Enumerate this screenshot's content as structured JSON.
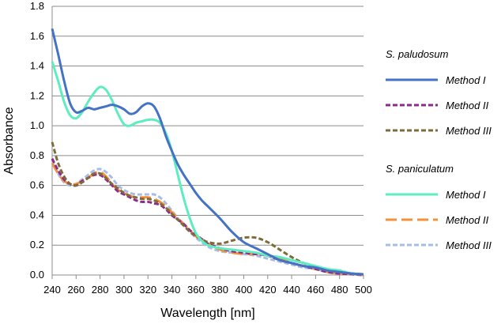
{
  "chart_data": {
    "type": "line",
    "title": "",
    "xlabel": "Wavelength [nm]",
    "ylabel": "Absorbance",
    "xlim": [
      240,
      500
    ],
    "ylim": [
      0,
      1.8
    ],
    "xticks": [
      "240",
      "260",
      "280",
      "300",
      "320",
      "340",
      "360",
      "380",
      "400",
      "420",
      "440",
      "460",
      "480",
      "500"
    ],
    "yticks": [
      "0.0",
      "0.2",
      "0.4",
      "0.6",
      "0.8",
      "1.0",
      "1.2",
      "1.4",
      "1.6",
      "1.8"
    ],
    "grid": "horizontal",
    "legend_position": "right",
    "groups": [
      {
        "name": "S. paludosum",
        "series": [
          {
            "name": "Method I",
            "color": "#4472C4",
            "dash": "solid",
            "x": [
              240,
              245,
              250,
              255,
              260,
              265,
              270,
              275,
              280,
              285,
              290,
              295,
              300,
              305,
              310,
              315,
              320,
              325,
              330,
              335,
              340,
              345,
              350,
              355,
              360,
              365,
              370,
              380,
              390,
              400,
              410,
              420,
              430,
              440,
              450,
              460,
              470,
              480,
              490,
              500
            ],
            "y": [
              1.65,
              1.48,
              1.3,
              1.15,
              1.09,
              1.1,
              1.12,
              1.11,
              1.12,
              1.13,
              1.14,
              1.13,
              1.11,
              1.08,
              1.09,
              1.13,
              1.15,
              1.13,
              1.05,
              0.93,
              0.83,
              0.74,
              0.67,
              0.61,
              0.55,
              0.5,
              0.46,
              0.38,
              0.29,
              0.22,
              0.18,
              0.14,
              0.1,
              0.08,
              0.06,
              0.05,
              0.03,
              0.02,
              0.01,
              0.005
            ]
          },
          {
            "name": "Method II",
            "color": "#8E2A8B",
            "dash": "dashed",
            "x": [
              240,
              245,
              250,
              255,
              260,
              265,
              270,
              275,
              280,
              285,
              290,
              295,
              300,
              305,
              310,
              315,
              320,
              325,
              330,
              335,
              340,
              345,
              350,
              355,
              360,
              365,
              370,
              380,
              390,
              400,
              410,
              420,
              430,
              440,
              450,
              460,
              470,
              480,
              490,
              500
            ],
            "y": [
              0.78,
              0.7,
              0.64,
              0.61,
              0.6,
              0.63,
              0.65,
              0.67,
              0.67,
              0.64,
              0.6,
              0.56,
              0.54,
              0.52,
              0.5,
              0.49,
              0.49,
              0.48,
              0.47,
              0.44,
              0.4,
              0.37,
              0.34,
              0.3,
              0.27,
              0.24,
              0.21,
              0.18,
              0.16,
              0.15,
              0.14,
              0.13,
              0.1,
              0.08,
              0.06,
              0.04,
              0.02,
              0.01,
              0.005,
              0.0
            ]
          },
          {
            "name": "Method III",
            "color": "#7F6A3A",
            "dash": "dashed",
            "x": [
              240,
              245,
              250,
              255,
              260,
              265,
              270,
              275,
              280,
              285,
              290,
              295,
              300,
              305,
              310,
              315,
              320,
              325,
              330,
              335,
              340,
              345,
              350,
              355,
              360,
              365,
              370,
              380,
              390,
              400,
              410,
              420,
              430,
              440,
              450,
              460,
              470,
              480,
              490,
              500
            ],
            "y": [
              0.89,
              0.75,
              0.66,
              0.61,
              0.6,
              0.62,
              0.65,
              0.68,
              0.68,
              0.65,
              0.61,
              0.58,
              0.55,
              0.53,
              0.52,
              0.51,
              0.51,
              0.5,
              0.48,
              0.45,
              0.41,
              0.37,
              0.33,
              0.29,
              0.26,
              0.24,
              0.22,
              0.21,
              0.23,
              0.25,
              0.25,
              0.22,
              0.17,
              0.12,
              0.08,
              0.05,
              0.03,
              0.02,
              0.01,
              0.005
            ]
          }
        ]
      },
      {
        "name": "S. paniculatum",
        "series": [
          {
            "name": "Method I",
            "color": "#5EEDC0",
            "dash": "solid",
            "x": [
              240,
              245,
              250,
              255,
              260,
              265,
              270,
              275,
              280,
              285,
              290,
              295,
              300,
              305,
              310,
              315,
              320,
              325,
              330,
              335,
              340,
              345,
              350,
              355,
              360,
              365,
              370,
              380,
              390,
              400,
              410,
              420,
              430,
              440,
              450,
              460,
              470,
              480,
              490,
              500
            ],
            "y": [
              1.43,
              1.3,
              1.16,
              1.07,
              1.05,
              1.09,
              1.16,
              1.22,
              1.26,
              1.24,
              1.17,
              1.08,
              1.01,
              1.0,
              1.02,
              1.03,
              1.04,
              1.04,
              1.02,
              0.95,
              0.83,
              0.67,
              0.51,
              0.38,
              0.28,
              0.23,
              0.2,
              0.18,
              0.17,
              0.16,
              0.15,
              0.13,
              0.12,
              0.1,
              0.08,
              0.06,
              0.04,
              0.03,
              0.01,
              0.005
            ]
          },
          {
            "name": "Method II",
            "color": "#F4923A",
            "dash": "longdash",
            "x": [
              240,
              245,
              250,
              255,
              260,
              265,
              270,
              275,
              280,
              285,
              290,
              295,
              300,
              305,
              310,
              315,
              320,
              325,
              330,
              335,
              340,
              345,
              350,
              355,
              360,
              365,
              370,
              380,
              390,
              400,
              410,
              420,
              430,
              440,
              450,
              460,
              470,
              480,
              490,
              500
            ],
            "y": [
              0.75,
              0.68,
              0.63,
              0.61,
              0.61,
              0.63,
              0.65,
              0.68,
              0.69,
              0.66,
              0.61,
              0.57,
              0.55,
              0.53,
              0.52,
              0.52,
              0.52,
              0.51,
              0.49,
              0.46,
              0.42,
              0.38,
              0.34,
              0.3,
              0.26,
              0.23,
              0.21,
              0.17,
              0.15,
              0.14,
              0.14,
              0.13,
              0.11,
              0.08,
              0.06,
              0.04,
              0.02,
              0.01,
              0.005,
              0.0
            ]
          },
          {
            "name": "Method III",
            "color": "#A7BDE8",
            "dash": "dashed",
            "x": [
              240,
              245,
              250,
              255,
              260,
              265,
              270,
              275,
              280,
              285,
              290,
              295,
              300,
              305,
              310,
              315,
              320,
              325,
              330,
              335,
              340,
              345,
              350,
              355,
              360,
              365,
              370,
              380,
              390,
              400,
              410,
              420,
              430,
              440,
              450,
              460,
              470,
              480,
              490,
              500
            ],
            "y": [
              0.77,
              0.68,
              0.62,
              0.6,
              0.61,
              0.64,
              0.67,
              0.7,
              0.71,
              0.69,
              0.65,
              0.6,
              0.57,
              0.55,
              0.54,
              0.54,
              0.54,
              0.54,
              0.52,
              0.48,
              0.43,
              0.38,
              0.33,
              0.29,
              0.25,
              0.22,
              0.19,
              0.16,
              0.15,
              0.14,
              0.13,
              0.11,
              0.09,
              0.07,
              0.05,
              0.04,
              0.02,
              0.01,
              0.005,
              0.0
            ]
          }
        ]
      }
    ]
  }
}
